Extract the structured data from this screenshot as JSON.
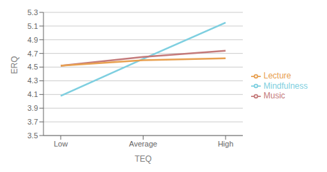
{
  "chart_data": {
    "type": "line",
    "categories": [
      "Low",
      "Average",
      "High"
    ],
    "series": [
      {
        "name": "Mindfulness",
        "color": "#7ECFE0",
        "values": [
          4.08,
          4.62,
          5.15
        ]
      },
      {
        "name": "Music",
        "color": "#C47A7A",
        "values": [
          4.52,
          4.65,
          4.74
        ]
      },
      {
        "name": "Lecture",
        "color": "#E8A050",
        "values": [
          4.52,
          4.6,
          4.63
        ]
      }
    ],
    "x_label": "TEQ",
    "y_label": "ERQ",
    "ylim": [
      3.5,
      5.3
    ],
    "yticks": [
      3.5,
      3.7,
      3.9,
      4.1,
      4.3,
      4.5,
      4.7,
      4.9,
      5.1,
      5.3
    ],
    "grid": "y",
    "legend": "right"
  }
}
